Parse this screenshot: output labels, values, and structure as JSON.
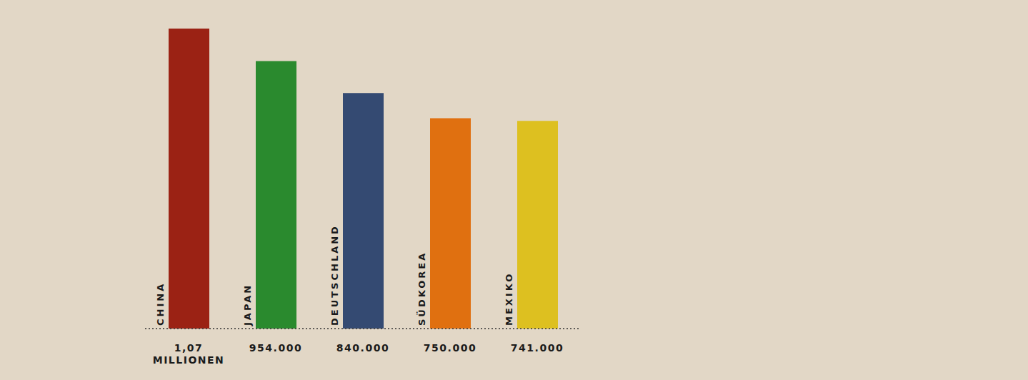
{
  "chart_data": {
    "type": "bar",
    "categories": [
      "CHINA",
      "JAPAN",
      "DEUTSCHLAND",
      "SÜDKOREA",
      "MEXIKO"
    ],
    "values": [
      1070000,
      954000,
      840000,
      750000,
      741000
    ],
    "value_labels": [
      "1,07 MILLIONEN",
      "954.000",
      "840.000",
      "750.000",
      "741.000"
    ],
    "colors": [
      "#9b2214",
      "#2a8a2e",
      "#344a72",
      "#e07010",
      "#ddc020"
    ],
    "ylim": [
      0,
      1070000
    ],
    "grid": false,
    "data_labels": true,
    "tick_labels": "x"
  }
}
